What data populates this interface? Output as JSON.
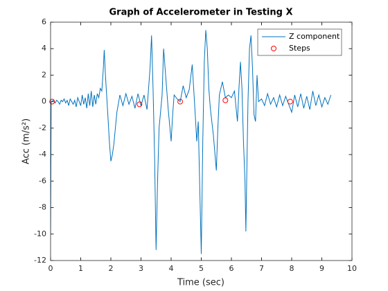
{
  "chart_data": {
    "type": "line",
    "title": "Graph of Accelerometer in Testing X",
    "xlabel": "Time (sec)",
    "ylabel": "Acc (m/s²)",
    "xlim": [
      0,
      10
    ],
    "xticks": [
      0,
      1,
      2,
      3,
      4,
      5,
      6,
      7,
      8,
      9,
      10
    ],
    "ylim": [
      -12,
      6
    ],
    "yticks": [
      -12,
      -10,
      -8,
      -6,
      -4,
      -2,
      0,
      2,
      4,
      6
    ],
    "legend": "top-right",
    "series": [
      {
        "name": "Z component",
        "type": "line",
        "color": "#0072bd",
        "x": [
          0,
          0.02,
          0.1,
          0.15,
          0.2,
          0.25,
          0.3,
          0.35,
          0.4,
          0.45,
          0.5,
          0.55,
          0.6,
          0.65,
          0.7,
          0.75,
          0.8,
          0.85,
          0.9,
          0.95,
          1.0,
          1.05,
          1.1,
          1.15,
          1.2,
          1.25,
          1.3,
          1.35,
          1.4,
          1.45,
          1.5,
          1.55,
          1.6,
          1.65,
          1.7,
          1.75,
          1.78,
          1.82,
          1.86,
          1.9,
          1.95,
          2.0,
          2.05,
          2.1,
          2.15,
          2.2,
          2.3,
          2.4,
          2.5,
          2.6,
          2.7,
          2.8,
          2.9,
          3.0,
          3.1,
          3.2,
          3.3,
          3.35,
          3.4,
          3.45,
          3.5,
          3.55,
          3.6,
          3.7,
          3.75,
          3.8,
          3.9,
          4.0,
          4.05,
          4.1,
          4.2,
          4.3,
          4.4,
          4.5,
          4.6,
          4.7,
          4.8,
          4.85,
          4.9,
          4.95,
          5.0,
          5.05,
          5.1,
          5.15,
          5.2,
          5.25,
          5.3,
          5.4,
          5.5,
          5.55,
          5.6,
          5.7,
          5.8,
          5.9,
          6.0,
          6.1,
          6.2,
          6.25,
          6.3,
          6.35,
          6.4,
          6.45,
          6.48,
          6.52,
          6.55,
          6.6,
          6.65,
          6.7,
          6.75,
          6.8,
          6.85,
          6.9,
          7.0,
          7.1,
          7.2,
          7.3,
          7.4,
          7.5,
          7.6,
          7.7,
          7.8,
          7.9,
          8.0,
          8.1,
          8.2,
          8.3,
          8.4,
          8.5,
          8.6,
          8.7,
          8.8,
          8.9,
          9.0,
          9.1,
          9.2,
          9.3
        ],
        "values": [
          -10,
          0,
          0.1,
          -0.1,
          0.1,
          0,
          -0.2,
          0.1,
          0,
          0.2,
          -0.1,
          0.1,
          -0.3,
          0.2,
          0,
          -0.2,
          0.1,
          -0.4,
          0.3,
          0,
          -0.3,
          0.5,
          -0.2,
          0.3,
          -0.5,
          0.6,
          -0.3,
          0.8,
          -0.4,
          0.5,
          -0.2,
          0.6,
          0.3,
          1.0,
          0.8,
          2.5,
          3.9,
          2.0,
          0.5,
          -1.0,
          -3.0,
          -4.5,
          -4.0,
          -3.2,
          -2.0,
          -0.8,
          0.5,
          -0.3,
          0.6,
          -0.2,
          0.4,
          -0.5,
          0.6,
          -0.3,
          0.5,
          -0.6,
          2.5,
          5.0,
          1.0,
          -4.0,
          -11.2,
          -6.0,
          -2.0,
          0.5,
          4.0,
          2.5,
          -0.5,
          -3.0,
          -1.0,
          0.5,
          0.2,
          0,
          1.2,
          0.3,
          0.9,
          2.8,
          -1.0,
          -3.0,
          -1.5,
          -6.5,
          -11.5,
          -3.0,
          3.0,
          5.4,
          4.0,
          1.0,
          -0.5,
          -2.5,
          -5.2,
          -2.0,
          0.5,
          1.5,
          0.3,
          0.5,
          0.3,
          0.8,
          -1.5,
          1.0,
          3.0,
          1.0,
          -3.0,
          -6.0,
          -9.8,
          -4.0,
          0,
          4.0,
          5.0,
          2.5,
          -1.0,
          -1.5,
          2.0,
          0,
          0.2,
          -0.3,
          0.6,
          -0.2,
          0.3,
          -0.4,
          0.5,
          -0.3,
          0.4,
          -0.2,
          -0.8,
          0.5,
          -0.4,
          0.6,
          -0.5,
          0.4,
          -0.6,
          0.8,
          -0.3,
          0.5,
          -0.4,
          0.3,
          -0.2,
          0.5
        ]
      },
      {
        "name": "Steps",
        "type": "scatter",
        "color": "#ff0000",
        "x": [
          0.05,
          2.95,
          4.3,
          5.8,
          7.95
        ],
        "values": [
          0,
          -0.2,
          0,
          0.1,
          0
        ]
      }
    ]
  }
}
